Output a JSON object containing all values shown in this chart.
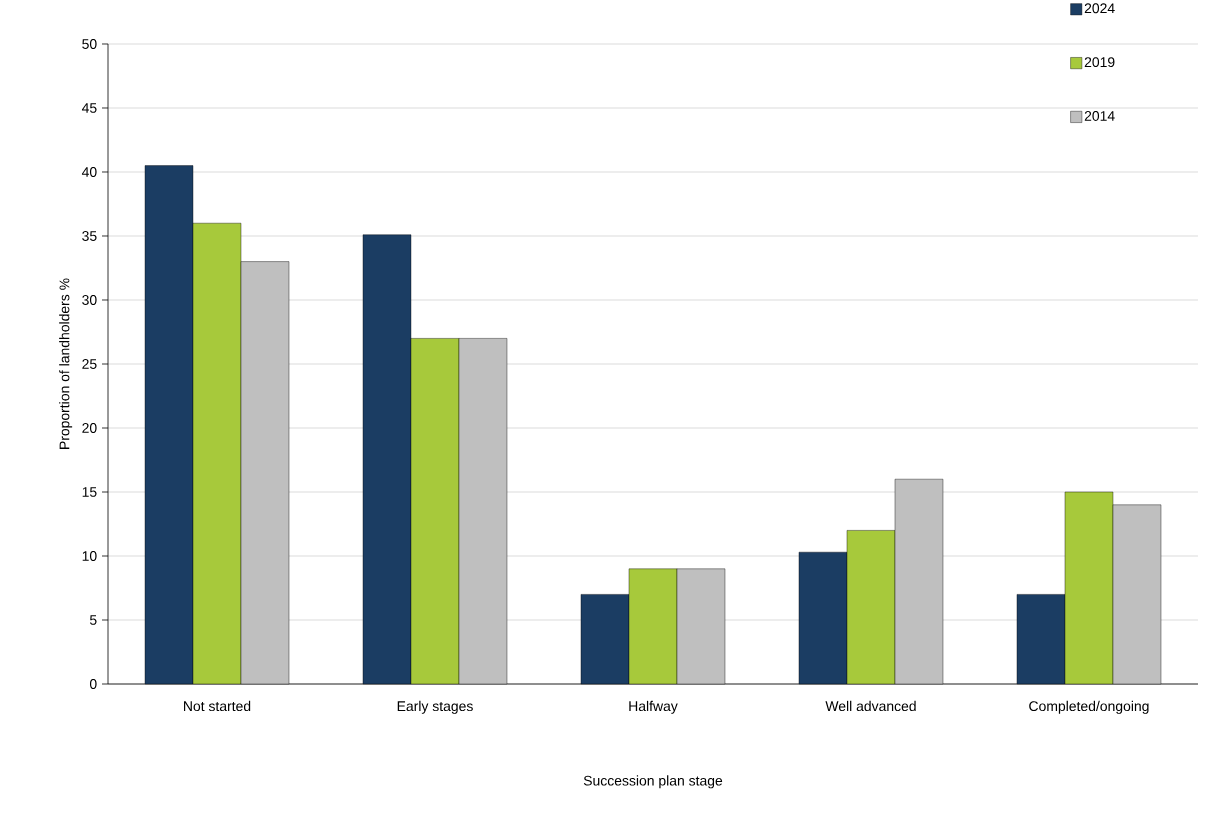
{
  "chart_data": {
    "type": "bar",
    "xlabel": "Succession plan stage",
    "ylabel": "Proportion of landholders %",
    "categories": [
      "Not started",
      "Early stages",
      "Halfway",
      "Well advanced",
      "Completed/ongoing"
    ],
    "series": [
      {
        "name": "2024",
        "color": "#1b3d63",
        "values": [
          40.5,
          35.1,
          7,
          10.3,
          7
        ]
      },
      {
        "name": "2019",
        "color": "#a7c93b",
        "values": [
          36,
          27,
          9,
          12,
          15
        ]
      },
      {
        "name": "2014",
        "color": "#bfbfbf",
        "values": [
          33,
          27,
          9,
          16,
          14
        ]
      }
    ],
    "ylim": [
      0,
      50
    ],
    "yticks": [
      0,
      5,
      10,
      15,
      20,
      25,
      30,
      35,
      40,
      45,
      50
    ],
    "grid": "y",
    "legend": "top right"
  }
}
